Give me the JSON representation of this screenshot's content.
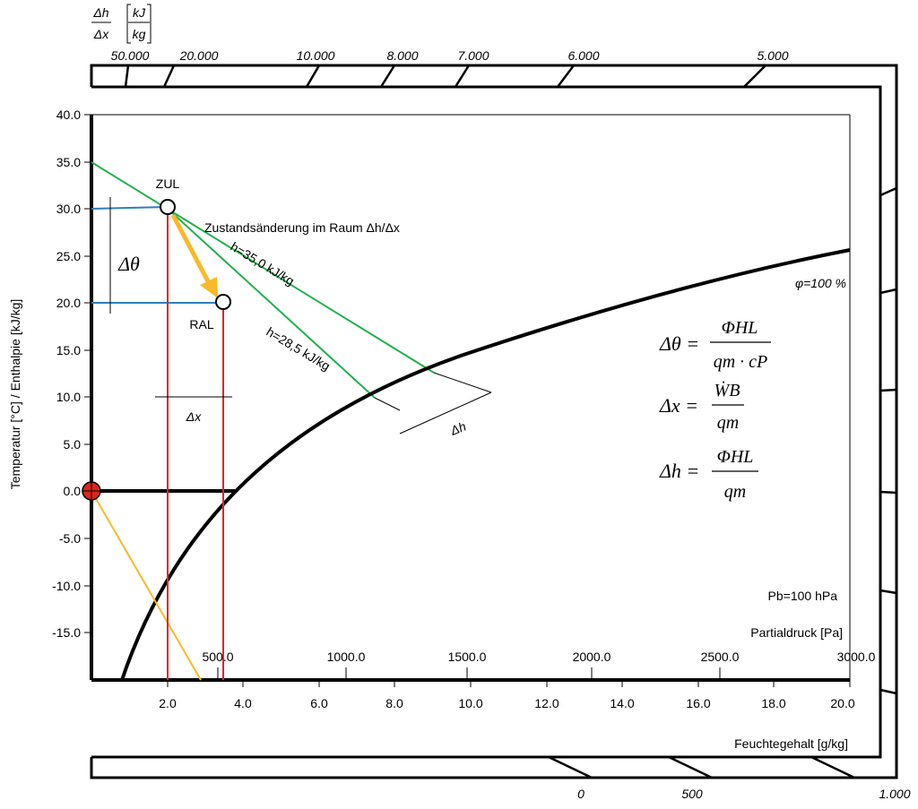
{
  "chart_data": {
    "type": "psychrometric-mollier",
    "x_axis": {
      "label": "Feuchtegehalt [g/kg]",
      "range": [
        0,
        20
      ],
      "ticks": [
        "2.0",
        "4.0",
        "6.0",
        "8.0",
        "10.0",
        "12.0",
        "14.0",
        "16.0",
        "18.0",
        "20.0"
      ]
    },
    "y_axis": {
      "label": "Temperatur [°C] / Enthalpie [kJ/kg]",
      "range": [
        -20,
        40
      ],
      "ticks": [
        "40.0",
        "35.0",
        "30.0",
        "25.0",
        "20.0",
        "15.0",
        "10.0",
        "5.0",
        "0.0",
        "-5.0",
        "-10.0",
        "-15.0"
      ]
    },
    "partial_pressure_axis": {
      "label": "Partialdruck [Pa]",
      "ticks": [
        "500.0",
        "1000.0",
        "1500.0",
        "2000.0",
        "2500.0",
        "3000.0"
      ]
    },
    "top_scale": {
      "label_num": "Δh",
      "label_den": "Δx",
      "unit_num": "kJ",
      "unit_den": "kg",
      "ticks": [
        "50.000",
        "20.000",
        "10.000",
        "8.000",
        "7.000",
        "6.000",
        "5.000"
      ]
    },
    "bottom_scale": {
      "ticks": [
        "0",
        "500",
        "1.000"
      ]
    },
    "points": [
      {
        "name": "ZUL",
        "x": 2.0,
        "t": 30.0
      },
      {
        "name": "RAL",
        "x": 3.5,
        "t": 20.0
      }
    ],
    "enthalpy_lines": [
      {
        "label": "h=35,0 kJ/kg",
        "h": 35.0
      },
      {
        "label": "h=28,5 kJ/kg",
        "h": 28.5
      }
    ],
    "saturation_label": "φ=100  %",
    "process_label": "Zustandsänderung im Raum  Δh/Δx",
    "delta_theta_label": "Δθ",
    "delta_x_label": "Δx",
    "delta_h_label": "Δh",
    "pressure_label": "Pb=100 hPa",
    "formulas": {
      "f1_lhs": "Δθ =",
      "f1_num": "ΦHL",
      "f1_den": "qm · cP",
      "f2_lhs": "Δx =",
      "f2_num": "ẆB",
      "f2_den": "qm",
      "f3_lhs": "Δh =",
      "f3_num": "ΦHL",
      "f3_den": "qm"
    },
    "colors": {
      "enthalpy": "#1db14b",
      "iso_x": "#e0252b",
      "iso_t": "#2c7fbf",
      "arrow": "#f9b929",
      "marker": "#d9261c"
    }
  }
}
